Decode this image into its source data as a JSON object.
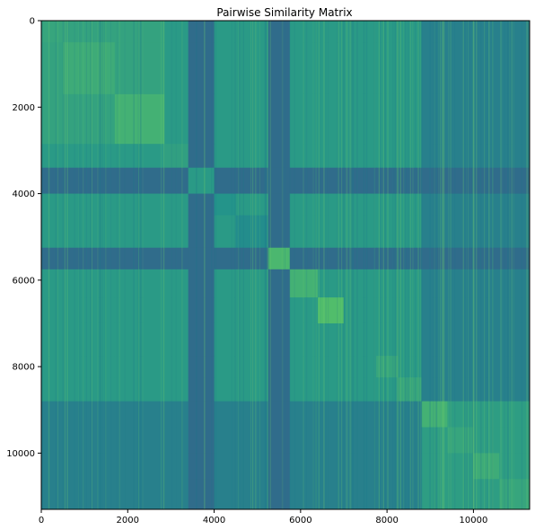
{
  "chart_data": {
    "type": "heatmap",
    "title": "Pairwise Similarity Matrix",
    "xlabel": "",
    "ylabel": "",
    "n": 11300,
    "xlim": [
      0,
      11300
    ],
    "ylim": [
      11300,
      0
    ],
    "y_axis_inverted": true,
    "x_ticks": [
      0,
      2000,
      4000,
      6000,
      8000,
      10000
    ],
    "y_ticks": [
      0,
      2000,
      4000,
      6000,
      8000,
      10000
    ],
    "grid": false,
    "legend": "none",
    "colormap": "viridis",
    "value_range": [
      0.55,
      0.72
    ],
    "background_value": 0.6,
    "block_boundaries": [
      0,
      500,
      1700,
      2850,
      3400,
      4000,
      4500,
      5250,
      5750,
      6400,
      7000,
      7750,
      8250,
      8800,
      9400,
      10000,
      10600,
      11300
    ],
    "cluster_values": [
      0.66,
      0.67,
      0.68,
      0.65,
      0.64,
      0.63,
      0.62,
      0.69,
      0.68,
      0.7,
      0.64,
      0.66,
      0.66,
      0.68,
      0.66,
      0.67,
      0.66
    ],
    "cross_cluster_values": {
      "dark_rows": [
        3400,
        5250
      ],
      "dark_value": 0.57,
      "light_pairs": [
        [
          0,
          2850,
          0.655
        ],
        [
          8800,
          11300,
          0.645
        ],
        [
          0,
          8800,
          0.64
        ],
        [
          6400,
          8800,
          0.635
        ]
      ]
    }
  }
}
